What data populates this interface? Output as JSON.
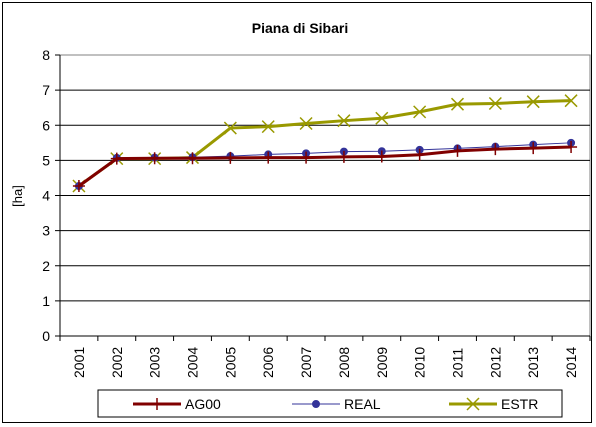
{
  "chart_data": {
    "type": "line",
    "title": "Piana di Sibari",
    "xlabel": "",
    "ylabel": "[ha]",
    "x": [
      "2001",
      "2002",
      "2003",
      "2004",
      "2005",
      "2006",
      "2007",
      "2008",
      "2009",
      "2010",
      "2011",
      "2012",
      "2013",
      "2014"
    ],
    "ylim": [
      0,
      8
    ],
    "yticks": [
      "0",
      "1",
      "2",
      "3",
      "4",
      "5",
      "6",
      "7",
      "8"
    ],
    "grid": true,
    "legend_position": "bottom",
    "series": [
      {
        "name": "AG00",
        "color": "#800000",
        "marker": "plus",
        "values": [
          4.27,
          5.05,
          5.06,
          5.06,
          5.07,
          5.08,
          5.08,
          5.1,
          5.11,
          5.16,
          5.27,
          5.32,
          5.35,
          5.38
        ]
      },
      {
        "name": "REAL",
        "color": "#333399",
        "marker": "circle",
        "values": [
          4.27,
          5.07,
          5.08,
          5.09,
          5.12,
          5.17,
          5.2,
          5.25,
          5.26,
          5.3,
          5.34,
          5.39,
          5.45,
          5.5
        ]
      },
      {
        "name": "ESTR",
        "color": "#999900",
        "marker": "x",
        "values": [
          4.27,
          5.05,
          5.05,
          5.08,
          5.92,
          5.96,
          6.05,
          6.13,
          6.2,
          6.38,
          6.6,
          6.62,
          6.67,
          6.7
        ]
      }
    ]
  }
}
